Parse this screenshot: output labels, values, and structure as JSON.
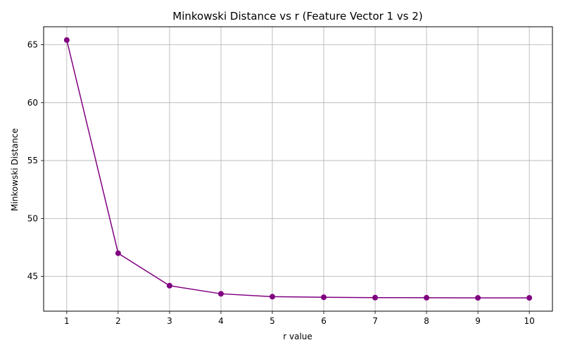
{
  "chart_data": {
    "type": "line",
    "title": "Minkowski Distance vs r (Feature Vector 1 vs 2)",
    "xlabel": "r value",
    "ylabel": "Minkowski Distance",
    "x": [
      1,
      2,
      3,
      4,
      5,
      6,
      7,
      8,
      9,
      10
    ],
    "series": [
      {
        "values": [
          65.4,
          47.0,
          44.2,
          43.5,
          43.25,
          43.2,
          43.17,
          43.16,
          43.15,
          43.15
        ]
      }
    ],
    "xticks": [
      1,
      2,
      3,
      4,
      5,
      6,
      7,
      8,
      9,
      10
    ],
    "yticks": [
      45,
      50,
      55,
      60,
      65
    ],
    "xlim": [
      0.55,
      10.45
    ],
    "ylim": [
      42.0,
      66.55
    ],
    "grid": true,
    "marker": "circle",
    "colors": {
      "series": "#800080",
      "grid": "#b0b0b0",
      "axis": "#000000"
    }
  }
}
